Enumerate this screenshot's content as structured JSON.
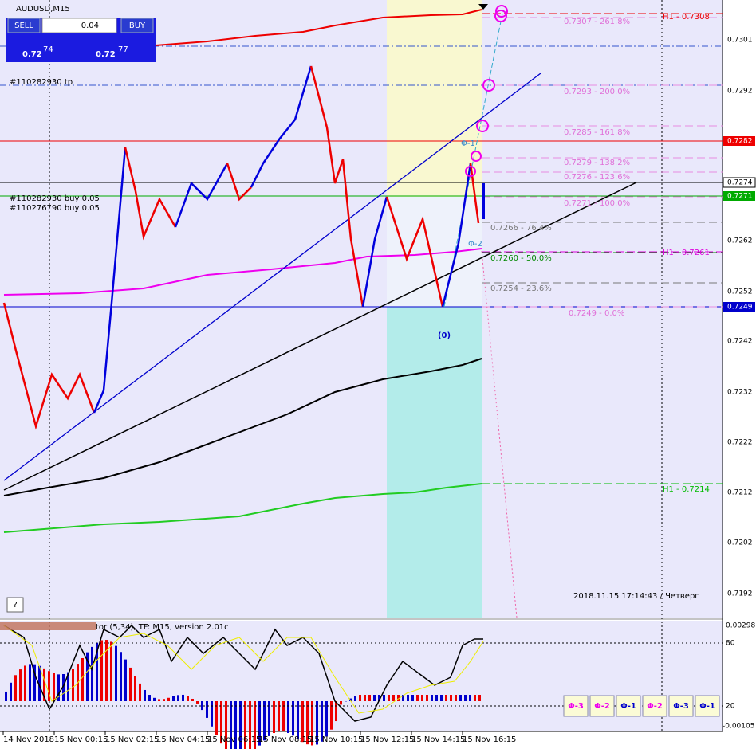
{
  "header": {
    "symbol": "AUDUSD,M15"
  },
  "trade_panel": {
    "sell": "SELL",
    "buy": "BUY",
    "lot": "0.04",
    "sell_small": "0.72",
    "sell_big": "74",
    "buy_small": "0.72",
    "buy_big": "77"
  },
  "orders": [
    "#110282930 tp",
    "#110282930 buy 0.05",
    "#110276790 buy 0.05"
  ],
  "price_axis": [
    "0.7301",
    "0.7292",
    "0.7262",
    "0.7252",
    "0.7242",
    "0.7232",
    "0.7222",
    "0.7212",
    "0.7202",
    "0.7192"
  ],
  "price_tags": {
    "red": "0.7282",
    "black": "0.7274",
    "green": "0.7271",
    "blue": "0.7249"
  },
  "fib_levels": [
    "0.7307 - 261.8%",
    "0.7293 - 200.0%",
    "0.7285 - 161.8%",
    "0.7279 - 138.2%",
    "0.7276 - 123.6%",
    "0.7271 - 100.0%",
    "0.7266 - 76.4%",
    "0.7260 - 50.0%",
    "0.7254 - 23.6%",
    "0.7249 - 0.0%"
  ],
  "h1_levels": [
    "H1 - 0.7308",
    "H1 - 0.7261",
    "H1 - 0.7214"
  ],
  "wave_labels": [
    "(0)",
    "Φ-1",
    "Φ-2"
  ],
  "datetime": "2018.11.15 17:14:43 / Четверг",
  "help": "?",
  "indicator": {
    "title": "tor (5,34), TF: M15, version 2.01c",
    "axis": [
      "0.00298",
      "80",
      "20",
      "-0.00105"
    ]
  },
  "buttons": [
    "Φ-3",
    "Φ-2",
    "Φ-1",
    "Φ-2",
    "Φ-3",
    "Φ-1"
  ],
  "time_axis": [
    "14 Nov 2018",
    "15 Nov 00:15",
    "15 Nov 02:15",
    "15 Nov 04:15",
    "15 Nov 06:15",
    "15 Nov 08:15",
    "15 Nov 10:15",
    "15 Nov 12:15",
    "15 Nov 14:15",
    "15 Nov 16:15"
  ]
}
